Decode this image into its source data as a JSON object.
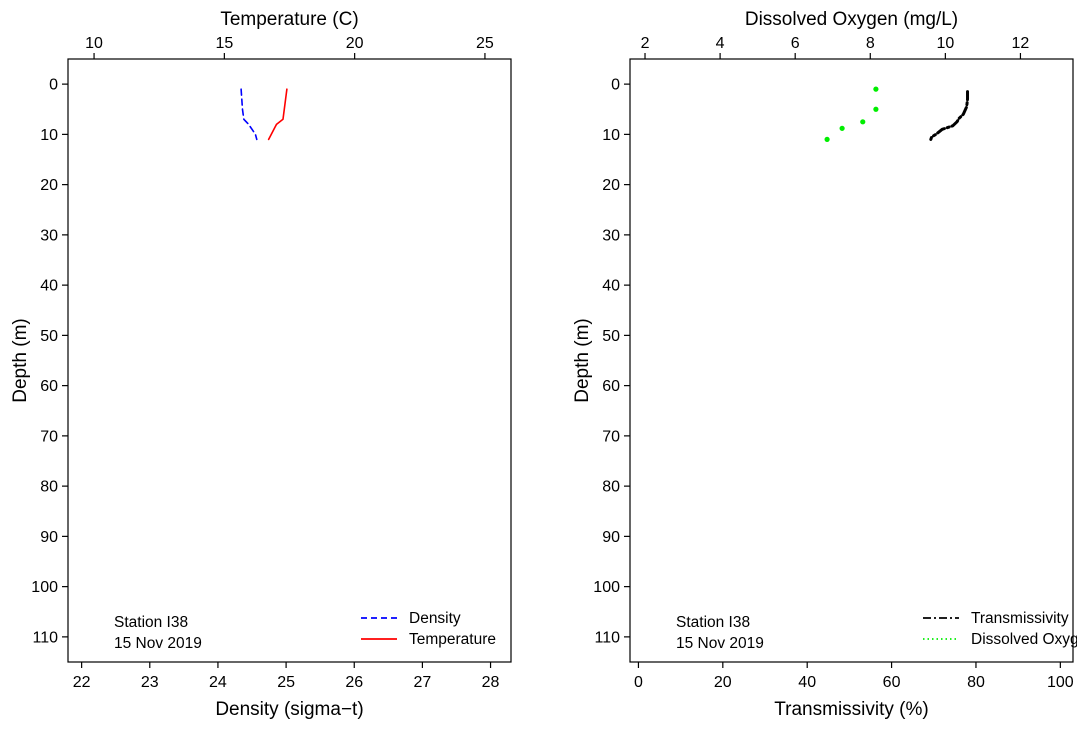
{
  "chart_data": [
    {
      "type": "line",
      "station_label": "Station I38",
      "date_label": "15 Nov 2019",
      "y_axis": {
        "label": "Depth (m)",
        "range": [
          115,
          -5
        ],
        "inverted": true,
        "ticks": [
          "0",
          "10",
          "20",
          "30",
          "40",
          "50",
          "60",
          "70",
          "80",
          "90",
          "100",
          "110"
        ],
        "tick_values": [
          0,
          10,
          20,
          30,
          40,
          50,
          60,
          70,
          80,
          90,
          100,
          110
        ]
      },
      "bottom_axis": {
        "label": "Density (sigma−t)",
        "range": [
          21.8,
          28.3
        ],
        "ticks": [
          "22",
          "23",
          "24",
          "25",
          "26",
          "27",
          "28"
        ],
        "tick_values": [
          22,
          23,
          24,
          25,
          26,
          27,
          28
        ]
      },
      "top_axis": {
        "label": "Temperature (C)",
        "range": [
          9.0,
          26.0
        ],
        "ticks": [
          "10",
          "15",
          "20",
          "25"
        ],
        "tick_values": [
          10,
          15,
          20,
          25
        ]
      },
      "legend": {
        "placement": "bottom-right",
        "entries": [
          "Density",
          "Temperature"
        ]
      },
      "series": [
        {
          "name": "Density",
          "axis": "bottom",
          "style": "dashed",
          "color": "#0000ff",
          "points": [
            [
              24.34,
              1
            ],
            [
              24.35,
              3
            ],
            [
              24.36,
              5
            ],
            [
              24.38,
              7
            ],
            [
              24.45,
              8
            ],
            [
              24.5,
              9
            ],
            [
              24.55,
              10
            ],
            [
              24.57,
              11
            ]
          ]
        },
        {
          "name": "Temperature",
          "axis": "top",
          "style": "solid",
          "color": "#ff0000",
          "points": [
            [
              17.4,
              1
            ],
            [
              17.35,
              3
            ],
            [
              17.3,
              5
            ],
            [
              17.25,
              7
            ],
            [
              17.0,
              8
            ],
            [
              16.9,
              9
            ],
            [
              16.8,
              10
            ],
            [
              16.7,
              11
            ]
          ]
        }
      ]
    },
    {
      "type": "line",
      "station_label": "Station I38",
      "date_label": "15 Nov 2019",
      "y_axis": {
        "label": "Depth (m)",
        "range": [
          115,
          -5
        ],
        "inverted": true,
        "ticks": [
          "0",
          "10",
          "20",
          "30",
          "40",
          "50",
          "60",
          "70",
          "80",
          "90",
          "100",
          "110"
        ],
        "tick_values": [
          0,
          10,
          20,
          30,
          40,
          50,
          60,
          70,
          80,
          90,
          100,
          110
        ]
      },
      "bottom_axis": {
        "label": "Transmissivity (%)",
        "range": [
          -2,
          103
        ],
        "ticks": [
          "0",
          "20",
          "40",
          "60",
          "80",
          "100"
        ],
        "tick_values": [
          0,
          20,
          40,
          60,
          80,
          100
        ]
      },
      "top_axis": {
        "label": "Dissolved Oxygen (mg/L)",
        "range": [
          1.6,
          13.4
        ],
        "ticks": [
          "2",
          "4",
          "6",
          "8",
          "10",
          "12"
        ],
        "tick_values": [
          2,
          4,
          6,
          8,
          10,
          12
        ]
      },
      "legend": {
        "placement": "bottom-right",
        "entries": [
          "Transmissivity",
          "Dissolved Oxygen"
        ]
      },
      "series": [
        {
          "name": "Transmissivity",
          "axis": "bottom",
          "style": "dashdot",
          "color": "#000000",
          "points": [
            [
              78,
              1.5
            ],
            [
              78,
              3
            ],
            [
              77.8,
              4.5
            ],
            [
              77,
              6
            ],
            [
              76,
              6.8
            ],
            [
              75.5,
              7.5
            ],
            [
              74.5,
              8.3
            ],
            [
              72,
              9
            ],
            [
              70.5,
              10
            ],
            [
              69.5,
              10.5
            ],
            [
              69.3,
              11
            ]
          ]
        },
        {
          "name": "Dissolved Oxygen",
          "axis": "top",
          "style": "dotted",
          "color": "#00ee00",
          "points": [
            [
              8.15,
              1
            ],
            [
              8.15,
              5
            ],
            [
              7.8,
              7.5
            ],
            [
              7.25,
              8.8
            ],
            [
              6.85,
              11
            ]
          ]
        }
      ]
    }
  ]
}
